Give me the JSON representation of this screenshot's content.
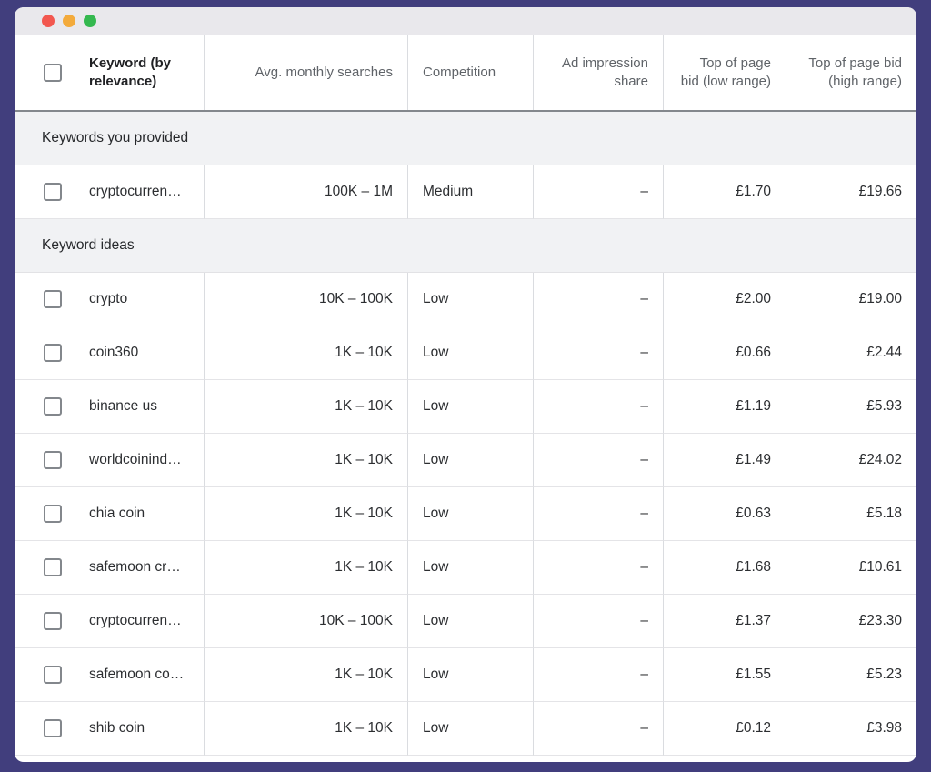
{
  "window": {
    "traffic_lights": {
      "close_color": "#f2574f",
      "minimize_color": "#f3aa3b",
      "zoom_color": "#34b84f"
    }
  },
  "colors": {
    "desktop_background": "#413e7d",
    "titlebar_background": "#e9e8ec",
    "section_band_background": "#f1f2f4",
    "header_text": "#5f6368",
    "cell_text": "#2c2e31",
    "divider": "#dadce0"
  },
  "table": {
    "columns": [
      {
        "id": "keyword",
        "label": "Keyword (by relevance)",
        "align": "left"
      },
      {
        "id": "searches",
        "label": "Avg. monthly searches",
        "align": "right"
      },
      {
        "id": "competition",
        "label": "Competition",
        "align": "left"
      },
      {
        "id": "impression",
        "label": "Ad impression share",
        "align": "right"
      },
      {
        "id": "bid_low",
        "label": "Top of page bid (low range)",
        "align": "right"
      },
      {
        "id": "bid_high",
        "label": "Top of page bid (high range)",
        "align": "right"
      }
    ],
    "sections": [
      {
        "label": "Keywords you provided",
        "rows": [
          {
            "keyword": "cryptocurren…",
            "searches": "100K – 1M",
            "competition": "Medium",
            "impression": "–",
            "bid_low": "£1.70",
            "bid_high": "£19.66"
          }
        ]
      },
      {
        "label": "Keyword ideas",
        "rows": [
          {
            "keyword": "crypto",
            "searches": "10K – 100K",
            "competition": "Low",
            "impression": "–",
            "bid_low": "£2.00",
            "bid_high": "£19.00"
          },
          {
            "keyword": "coin360",
            "searches": "1K – 10K",
            "competition": "Low",
            "impression": "–",
            "bid_low": "£0.66",
            "bid_high": "£2.44"
          },
          {
            "keyword": "binance us",
            "searches": "1K – 10K",
            "competition": "Low",
            "impression": "–",
            "bid_low": "£1.19",
            "bid_high": "£5.93"
          },
          {
            "keyword": "worldcoinind…",
            "searches": "1K – 10K",
            "competition": "Low",
            "impression": "–",
            "bid_low": "£1.49",
            "bid_high": "£24.02"
          },
          {
            "keyword": "chia coin",
            "searches": "1K – 10K",
            "competition": "Low",
            "impression": "–",
            "bid_low": "£0.63",
            "bid_high": "£5.18"
          },
          {
            "keyword": "safemoon cr…",
            "searches": "1K – 10K",
            "competition": "Low",
            "impression": "–",
            "bid_low": "£1.68",
            "bid_high": "£10.61"
          },
          {
            "keyword": "cryptocurren…",
            "searches": "10K – 100K",
            "competition": "Low",
            "impression": "–",
            "bid_low": "£1.37",
            "bid_high": "£23.30"
          },
          {
            "keyword": "safemoon co…",
            "searches": "1K – 10K",
            "competition": "Low",
            "impression": "–",
            "bid_low": "£1.55",
            "bid_high": "£5.23"
          },
          {
            "keyword": "shib coin",
            "searches": "1K – 10K",
            "competition": "Low",
            "impression": "–",
            "bid_low": "£0.12",
            "bid_high": "£3.98"
          }
        ]
      }
    ]
  }
}
